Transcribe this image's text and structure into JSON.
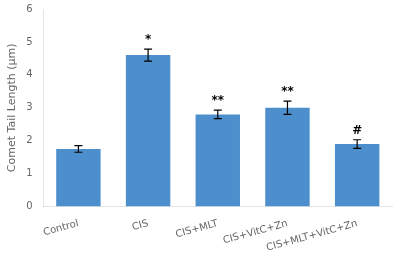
{
  "chart_data": {
    "type": "bar",
    "categories": [
      "Control",
      "CIS",
      "CIS+MLT",
      "CIS+VitC+Zn",
      "CIS+MLT+VitC+Zn"
    ],
    "values": [
      1.75,
      4.6,
      2.8,
      3.0,
      1.9
    ],
    "errors": [
      0.1,
      0.18,
      0.13,
      0.2,
      0.13
    ],
    "color": "#4d8fcc",
    "ylabel": "Comet Tail Length (μm)",
    "ylim": [
      0,
      6
    ],
    "yticks": [
      0,
      1,
      2,
      3,
      4,
      5,
      6
    ],
    "grid": false,
    "annotations": [
      {
        "category": "CIS",
        "text": "*"
      },
      {
        "category": "CIS+MLT",
        "text": "**"
      },
      {
        "category": "CIS+VitC+Zn",
        "text": "**"
      },
      {
        "category": "CIS+MLT+VitC+Zn",
        "text": "#"
      }
    ]
  }
}
